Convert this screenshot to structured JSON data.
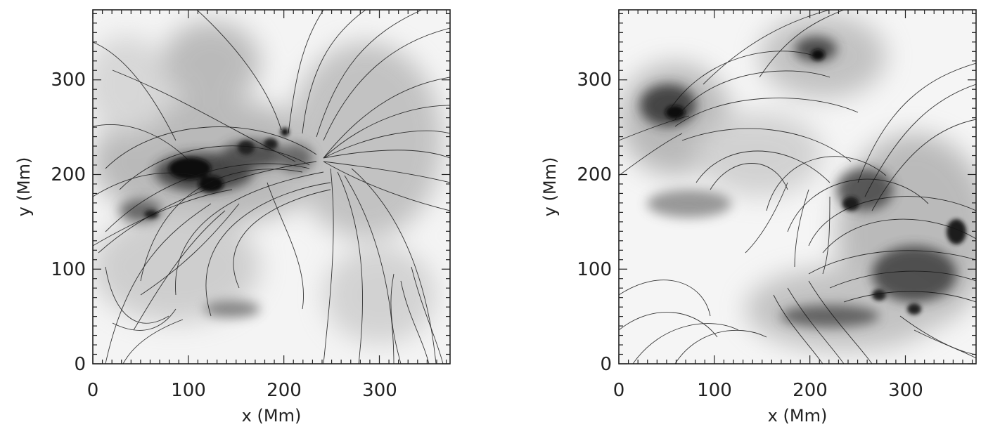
{
  "panels": [
    {
      "id": "left",
      "xlabel": "x (Mm)",
      "ylabel": "y (Mm)",
      "xticks": [
        "0",
        "100",
        "200",
        "300"
      ],
      "yticks": [
        "0",
        "100",
        "200",
        "300"
      ],
      "xlim": [
        0,
        374
      ],
      "ylim": [
        0,
        374
      ]
    },
    {
      "id": "right",
      "xlabel": "x (Mm)",
      "ylabel": "y (Mm)",
      "xticks": [
        "0",
        "100",
        "200",
        "300"
      ],
      "yticks": [
        "0",
        "100",
        "200",
        "300"
      ],
      "xlim": [
        0,
        374
      ],
      "ylim": [
        0,
        374
      ]
    }
  ],
  "colors": {
    "background": "#ffffff",
    "ink": "#111111",
    "haze": "#9a9a9a"
  }
}
